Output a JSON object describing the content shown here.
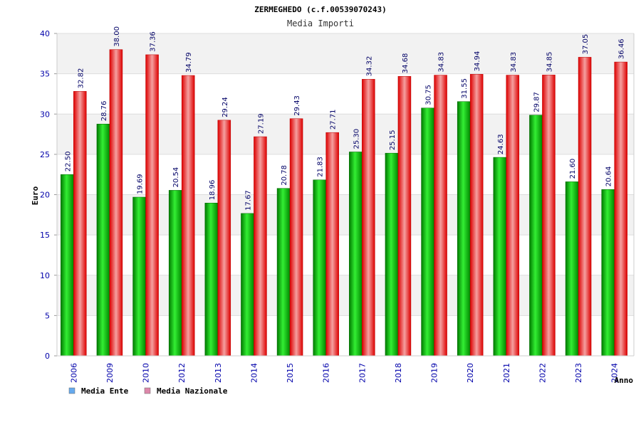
{
  "chart_data": {
    "type": "bar",
    "title": "ZERMEGHEDO (c.f.00539070243)",
    "subtitle": "Media Importi",
    "xlabel": "Anno",
    "ylabel": "Euro",
    "ylim": [
      0,
      40
    ],
    "yticks": [
      0,
      5,
      10,
      15,
      20,
      25,
      30,
      35,
      40
    ],
    "categories": [
      "2006",
      "2009",
      "2010",
      "2012",
      "2013",
      "2014",
      "2015",
      "2016",
      "2017",
      "2018",
      "2019",
      "2020",
      "2021",
      "2022",
      "2023",
      "2024"
    ],
    "series": [
      {
        "name": "Media Ente",
        "color": "#00aa00",
        "values": [
          22.5,
          28.76,
          19.69,
          20.54,
          18.96,
          17.67,
          20.78,
          21.83,
          25.3,
          25.15,
          30.75,
          31.55,
          24.63,
          29.87,
          21.6,
          20.64
        ],
        "labels": [
          "22.50",
          "28.76",
          "19.69",
          "20.54",
          "18.96",
          "17.67",
          "20.78",
          "21.83",
          "25.30",
          "25.15",
          "30.75",
          "31.55",
          "24.63",
          "29.87",
          "21.60",
          "20.64"
        ]
      },
      {
        "name": "Media Nazionale",
        "color": "#ee1111",
        "values": [
          32.82,
          38.0,
          37.36,
          34.79,
          29.24,
          27.19,
          29.43,
          27.71,
          34.32,
          34.68,
          34.83,
          34.94,
          34.83,
          34.85,
          37.05,
          36.46
        ],
        "labels": [
          "32.82",
          "38.00",
          "37.36",
          "34.79",
          "29.24",
          "27.19",
          "29.43",
          "27.71",
          "34.32",
          "34.68",
          "34.83",
          "34.94",
          "34.83",
          "34.85",
          "37.05",
          "36.46"
        ]
      }
    ],
    "legend": [
      {
        "label": "Media Ente",
        "swatch": "#66aaee"
      },
      {
        "label": "Media Nazionale",
        "swatch": "#dd88aa"
      }
    ],
    "grid": true,
    "band_color": "#f2f2f2"
  }
}
